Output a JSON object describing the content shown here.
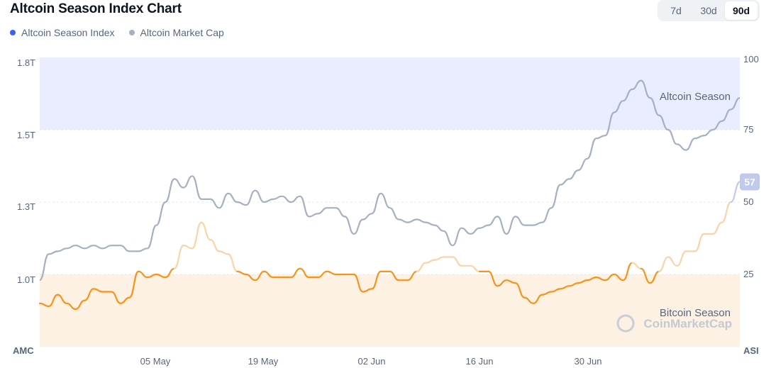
{
  "header": {
    "title": "Altcoin Season Index Chart"
  },
  "range_tabs": {
    "items": [
      "7d",
      "30d",
      "90d"
    ],
    "active": "90d"
  },
  "colors": {
    "index": "#3861fb",
    "market_cap": "#a6b0c3",
    "index_line_bitcoin": "#f7931a",
    "index_line_neutral": "#fcd3a7",
    "index_line_altcoin": "#c1c9ec",
    "altcoin_band": "#e9edfd",
    "bitcoin_band": "#fdf1e4"
  },
  "chart_data": {
    "type": "line",
    "x_ticks": [
      "05 May",
      "19 May",
      "02 Jun",
      "16 Jun",
      "30 Jun"
    ],
    "left_axis": {
      "label": "AMC",
      "ticks": [
        "1.8T",
        "1.5T",
        "1.3T",
        "1.0T"
      ],
      "range": [
        0.8,
        1.8
      ]
    },
    "right_axis": {
      "label": "ASI",
      "ticks": [
        "100",
        "75",
        "50",
        "25"
      ],
      "range": [
        0,
        100
      ]
    },
    "regions": [
      {
        "label": "Altcoin Season",
        "from": 75,
        "to": 100
      },
      {
        "label": "Bitcoin Season",
        "from": 0,
        "to": 25
      }
    ],
    "current_badge": "57",
    "watermark": "CoinMarketCap",
    "series": [
      {
        "name": "Altcoin Season Index",
        "axis": "right",
        "points": [
          [
            0,
            15
          ],
          [
            1,
            14
          ],
          [
            2,
            18
          ],
          [
            3,
            15
          ],
          [
            4,
            13
          ],
          [
            5,
            16
          ],
          [
            6,
            20
          ],
          [
            7,
            19
          ],
          [
            8,
            19
          ],
          [
            9,
            15
          ],
          [
            10,
            17
          ],
          [
            11,
            26
          ],
          [
            12,
            24
          ],
          [
            13,
            25
          ],
          [
            14,
            24
          ],
          [
            15,
            27
          ],
          [
            16,
            35
          ],
          [
            17,
            34
          ],
          [
            18,
            43
          ],
          [
            19,
            37
          ],
          [
            20,
            33
          ],
          [
            21,
            32
          ],
          [
            22,
            26
          ],
          [
            23,
            25
          ],
          [
            24,
            23
          ],
          [
            25,
            26
          ],
          [
            26,
            24
          ],
          [
            27,
            24
          ],
          [
            28,
            24
          ],
          [
            29,
            27
          ],
          [
            30,
            24
          ],
          [
            31,
            24
          ],
          [
            32,
            26
          ],
          [
            33,
            25
          ],
          [
            34,
            25
          ],
          [
            35,
            25
          ],
          [
            36,
            19
          ],
          [
            37,
            20
          ],
          [
            38,
            26
          ],
          [
            39,
            26
          ],
          [
            40,
            23
          ],
          [
            41,
            23
          ],
          [
            42,
            26
          ],
          [
            43,
            29
          ],
          [
            44,
            30
          ],
          [
            45,
            31
          ],
          [
            46,
            31
          ],
          [
            47,
            28
          ],
          [
            48,
            28
          ],
          [
            49,
            26
          ],
          [
            50,
            26
          ],
          [
            51,
            21
          ],
          [
            52,
            23
          ],
          [
            53,
            22
          ],
          [
            54,
            17
          ],
          [
            55,
            15
          ],
          [
            56,
            18
          ],
          [
            57,
            19
          ],
          [
            58,
            20
          ],
          [
            59,
            21
          ],
          [
            60,
            22
          ],
          [
            61,
            23
          ],
          [
            62,
            24
          ],
          [
            63,
            23
          ],
          [
            64,
            25
          ],
          [
            65,
            23
          ],
          [
            66,
            29
          ],
          [
            67,
            27
          ],
          [
            68,
            22
          ],
          [
            69,
            26
          ],
          [
            70,
            31
          ],
          [
            71,
            28
          ],
          [
            72,
            33
          ],
          [
            73,
            33
          ],
          [
            74,
            39
          ],
          [
            75,
            39
          ],
          [
            76,
            43
          ],
          [
            77,
            50
          ],
          [
            78,
            57
          ]
        ]
      },
      {
        "name": "Altcoin Market Cap",
        "axis": "left",
        "points": [
          [
            0,
            1.03
          ],
          [
            1,
            1.12
          ],
          [
            2,
            1.13
          ],
          [
            3,
            1.14
          ],
          [
            4,
            1.15
          ],
          [
            5,
            1.14
          ],
          [
            6,
            1.15
          ],
          [
            7,
            1.14
          ],
          [
            8,
            1.15
          ],
          [
            9,
            1.15
          ],
          [
            10,
            1.13
          ],
          [
            11,
            1.13
          ],
          [
            12,
            1.14
          ],
          [
            13,
            1.22
          ],
          [
            14,
            1.3
          ],
          [
            15,
            1.38
          ],
          [
            16,
            1.35
          ],
          [
            17,
            1.39
          ],
          [
            18,
            1.31
          ],
          [
            19,
            1.31
          ],
          [
            20,
            1.28
          ],
          [
            21,
            1.33
          ],
          [
            22,
            1.3
          ],
          [
            23,
            1.29
          ],
          [
            24,
            1.34
          ],
          [
            25,
            1.3
          ],
          [
            26,
            1.31
          ],
          [
            27,
            1.32
          ],
          [
            28,
            1.3
          ],
          [
            29,
            1.32
          ],
          [
            30,
            1.25
          ],
          [
            31,
            1.26
          ],
          [
            32,
            1.28
          ],
          [
            33,
            1.28
          ],
          [
            34,
            1.25
          ],
          [
            35,
            1.19
          ],
          [
            36,
            1.24
          ],
          [
            37,
            1.26
          ],
          [
            38,
            1.33
          ],
          [
            39,
            1.28
          ],
          [
            40,
            1.24
          ],
          [
            41,
            1.23
          ],
          [
            42,
            1.24
          ],
          [
            43,
            1.23
          ],
          [
            44,
            1.22
          ],
          [
            45,
            1.2
          ],
          [
            46,
            1.15
          ],
          [
            47,
            1.21
          ],
          [
            48,
            1.19
          ],
          [
            49,
            1.21
          ],
          [
            50,
            1.22
          ],
          [
            51,
            1.25
          ],
          [
            52,
            1.19
          ],
          [
            53,
            1.25
          ],
          [
            54,
            1.22
          ],
          [
            55,
            1.22
          ],
          [
            56,
            1.23
          ],
          [
            57,
            1.28
          ],
          [
            58,
            1.36
          ],
          [
            59,
            1.38
          ],
          [
            60,
            1.41
          ],
          [
            61,
            1.45
          ],
          [
            62,
            1.52
          ],
          [
            63,
            1.53
          ],
          [
            64,
            1.61
          ],
          [
            65,
            1.65
          ],
          [
            66,
            1.69
          ],
          [
            67,
            1.72
          ],
          [
            68,
            1.66
          ],
          [
            69,
            1.6
          ],
          [
            70,
            1.55
          ],
          [
            71,
            1.5
          ],
          [
            72,
            1.48
          ],
          [
            73,
            1.52
          ],
          [
            74,
            1.53
          ],
          [
            75,
            1.55
          ],
          [
            76,
            1.58
          ],
          [
            77,
            1.62
          ],
          [
            78,
            1.66
          ]
        ]
      }
    ]
  }
}
